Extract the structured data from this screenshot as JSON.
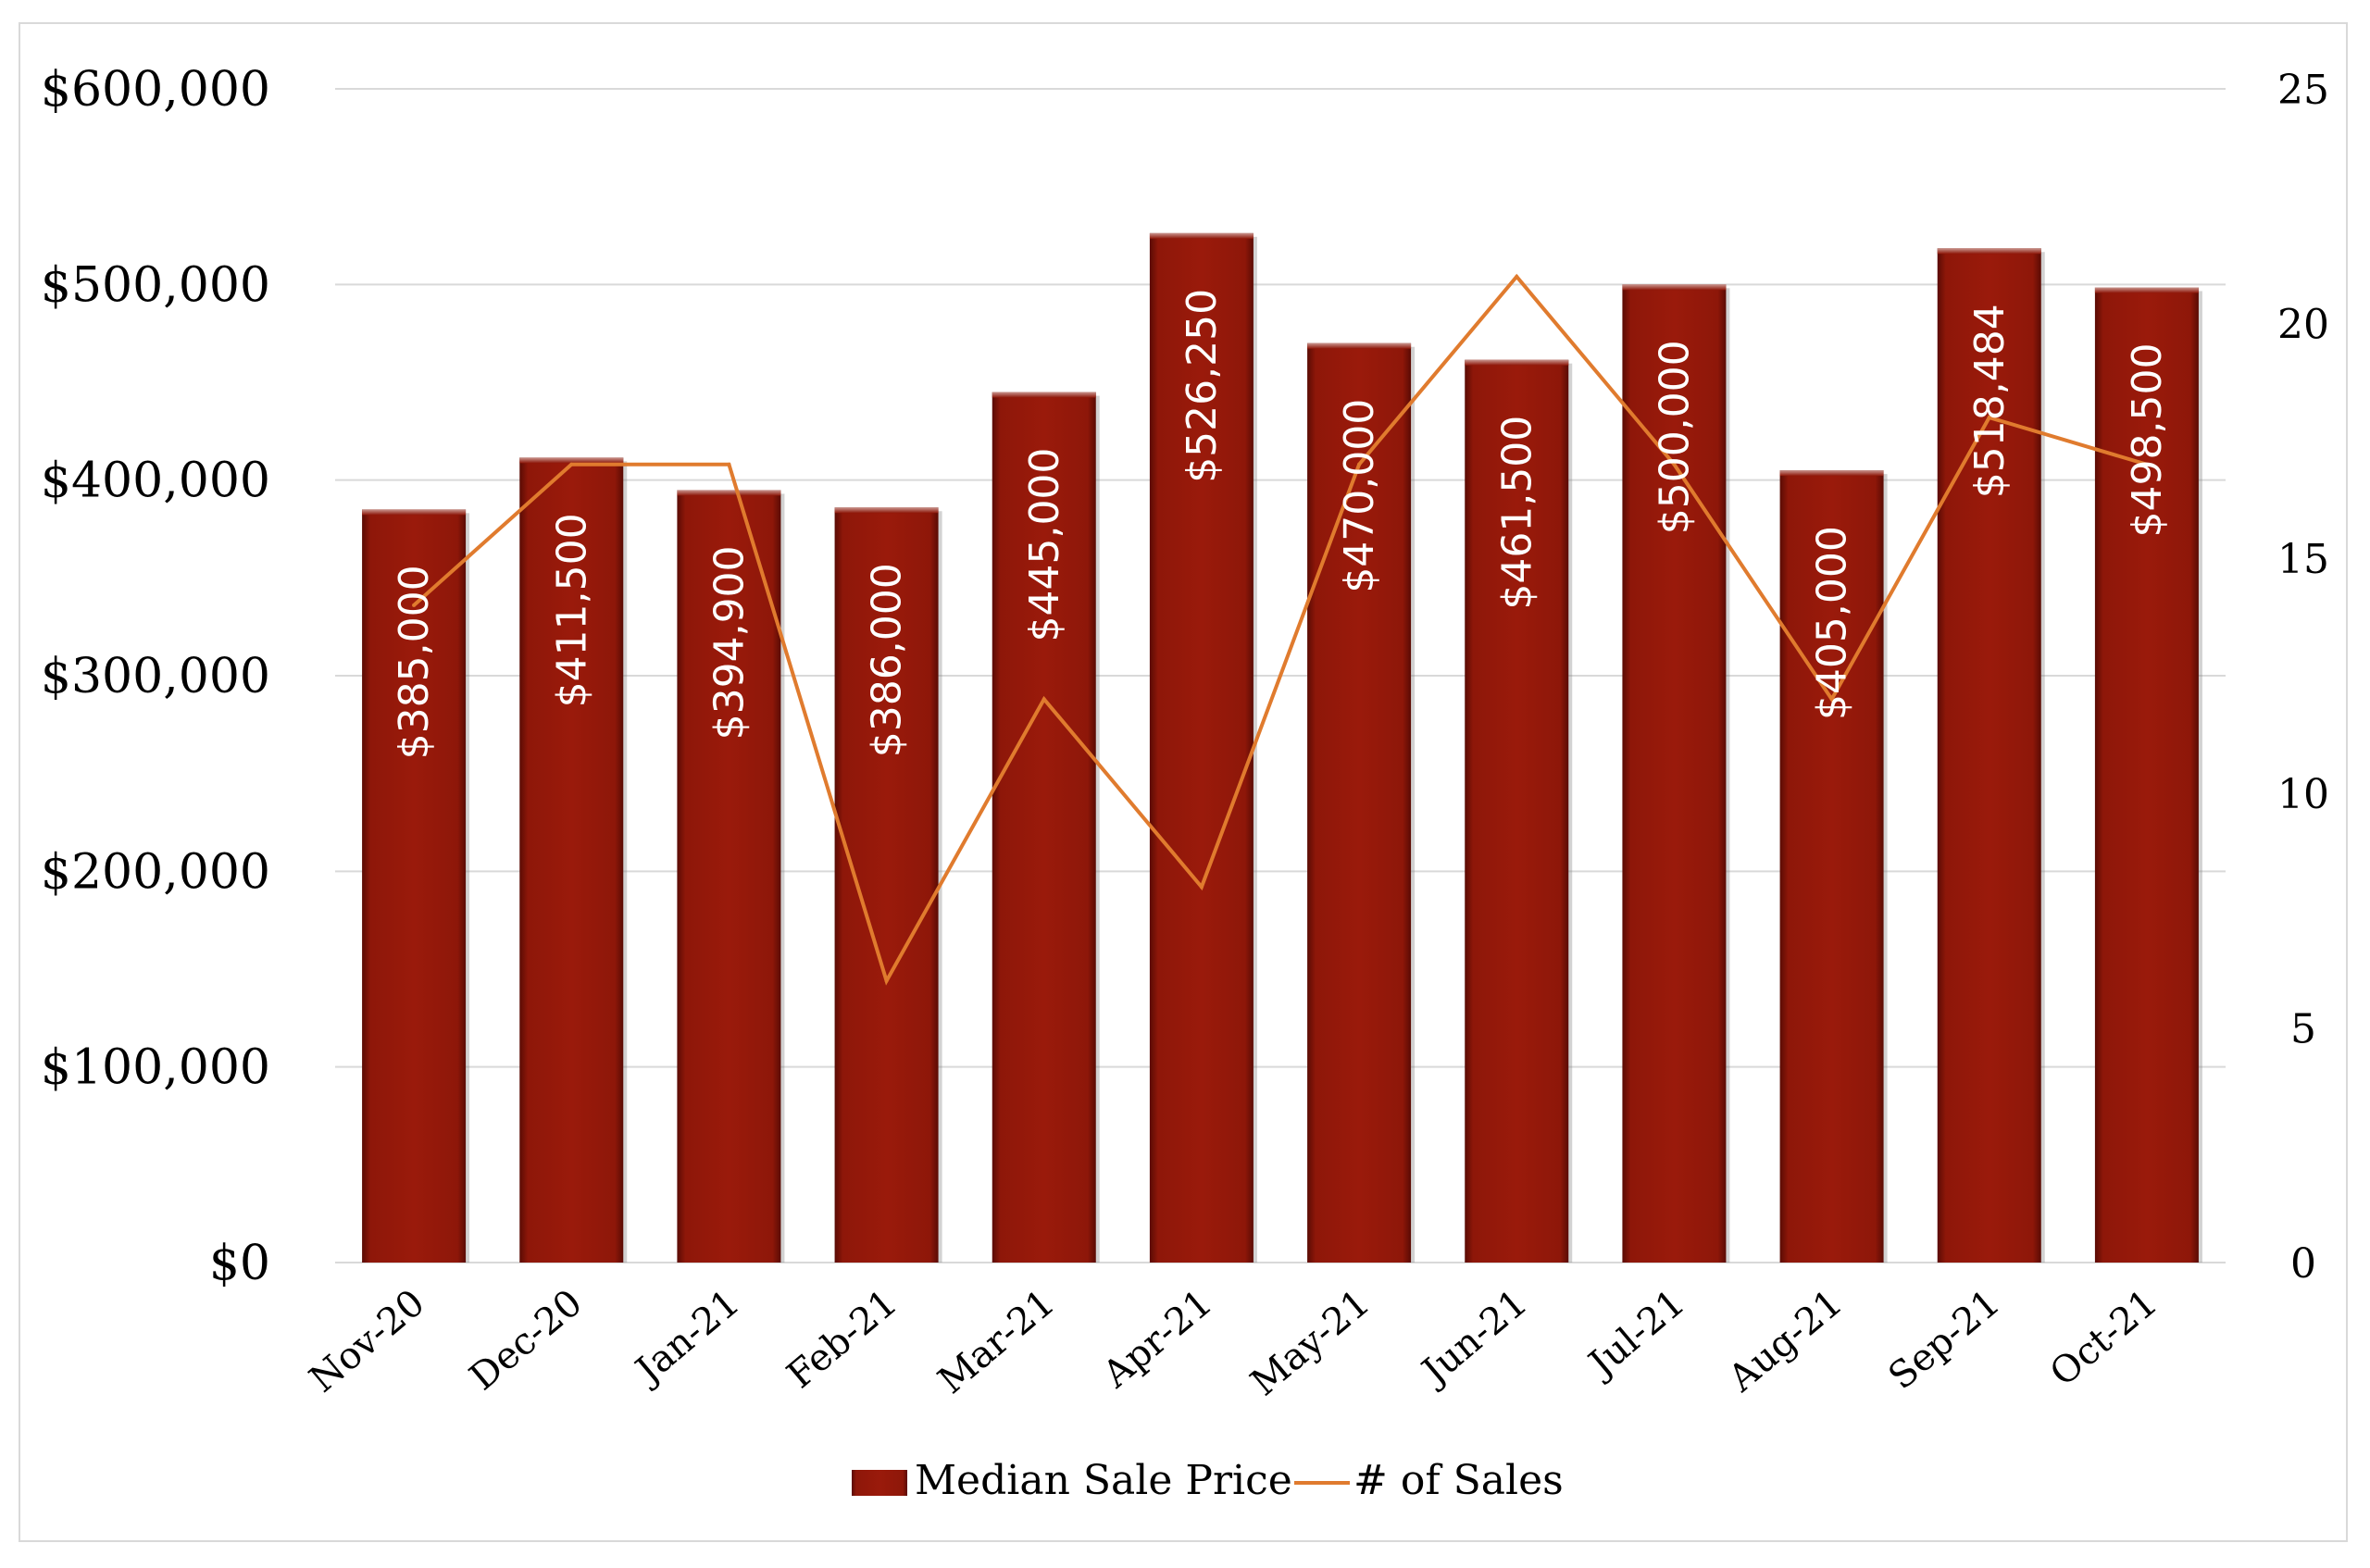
{
  "chart_data": {
    "type": "bar",
    "categories": [
      "Nov-20",
      "Dec-20",
      "Jan-21",
      "Feb-21",
      "Mar-21",
      "Apr-21",
      "May-21",
      "Jun-21",
      "Jul-21",
      "Aug-21",
      "Sep-21",
      "Oct-21"
    ],
    "series": [
      {
        "name": "Median Sale Price",
        "type": "bar",
        "axis": "left",
        "color": "#8e1709",
        "values": [
          385000,
          411500,
          394900,
          386000,
          445000,
          526250,
          470000,
          461500,
          500000,
          405000,
          518484,
          498500
        ],
        "labels": [
          "$385,000",
          "$411,500",
          "$394,900",
          "$386,000",
          "$445,000",
          "$526,250",
          "$470,000",
          "$461,500",
          "$500,000",
          "$405,000",
          "$518,484",
          "$498,500"
        ]
      },
      {
        "name": "# of Sales",
        "type": "line",
        "axis": "right",
        "color": "#e07b2e",
        "values": [
          14,
          17,
          17,
          6,
          12,
          8,
          17,
          21,
          17,
          12,
          18,
          17
        ]
      }
    ],
    "y_left": {
      "ylim": [
        0,
        600000
      ],
      "ticks": [
        0,
        100000,
        200000,
        300000,
        400000,
        500000,
        600000
      ],
      "tick_labels": [
        "$0",
        "$100,000",
        "$200,000",
        "$300,000",
        "$400,000",
        "$500,000",
        "$600,000"
      ]
    },
    "y_right": {
      "ylim": [
        0,
        25
      ],
      "ticks": [
        0,
        5,
        10,
        15,
        20,
        25
      ],
      "tick_labels": [
        "0",
        "5",
        "10",
        "15",
        "20",
        "25"
      ]
    },
    "grid": true,
    "legend": "bottom",
    "title": "",
    "xlabel": "",
    "ylabel": ""
  }
}
